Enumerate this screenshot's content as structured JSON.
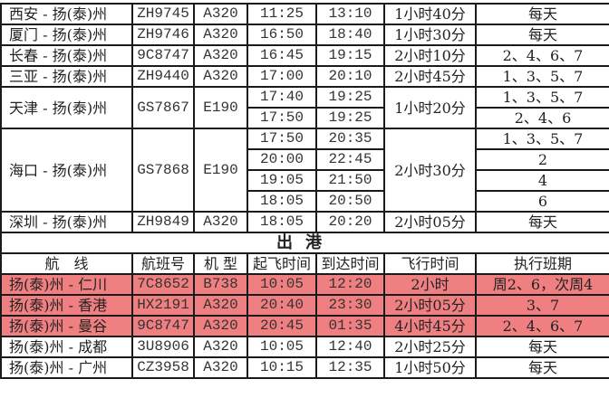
{
  "highlight_color": "#ef7f80",
  "arrivals": [
    {
      "route": "西安 - 扬(泰)州",
      "flight": "ZH9745",
      "aircraft": "A320",
      "duration": "1小时40分",
      "legs": [
        {
          "dep": "11:25",
          "arr": "13:10",
          "days": "每天"
        }
      ]
    },
    {
      "route": "厦门 - 扬(泰)州",
      "flight": "ZH9746",
      "aircraft": "A320",
      "duration": "1小时30分",
      "legs": [
        {
          "dep": "16:50",
          "arr": "18:40",
          "days": "每天"
        }
      ]
    },
    {
      "route": "长春 - 扬(泰)州",
      "flight": "9C8747",
      "aircraft": "A320",
      "duration": "2小时10分",
      "legs": [
        {
          "dep": "16:45",
          "arr": "19:15",
          "days": "2、4、6、7"
        }
      ]
    },
    {
      "route": "三亚 - 扬(泰)州",
      "flight": "ZH9440",
      "aircraft": "A320",
      "duration": "2小时45分",
      "legs": [
        {
          "dep": "17:00",
          "arr": "20:10",
          "days": "1、3、5、7"
        }
      ]
    },
    {
      "route": "天津 - 扬(泰)州",
      "flight": "GS7867",
      "aircraft": "E190",
      "duration": "1小时20分",
      "legs": [
        {
          "dep": "17:40",
          "arr": "19:25",
          "days": "1、3、5、7"
        },
        {
          "dep": "17:50",
          "arr": "19:25",
          "days": "2、4、6"
        }
      ]
    },
    {
      "route": "海口 - 扬(泰)州",
      "flight": "GS7868",
      "aircraft": "E190",
      "duration": "2小时30分",
      "legs": [
        {
          "dep": "17:50",
          "arr": "20:35",
          "days": "1、3、5、7"
        },
        {
          "dep": "20:00",
          "arr": "22:45",
          "days": "2"
        },
        {
          "dep": "19:05",
          "arr": "21:50",
          "days": "4"
        },
        {
          "dep": "18:05",
          "arr": "20:50",
          "days": "6"
        }
      ]
    },
    {
      "route": "深圳 - 扬(泰)州",
      "flight": "ZH9849",
      "aircraft": "A320",
      "duration": "2小时05分",
      "legs": [
        {
          "dep": "18:05",
          "arr": "20:20",
          "days": "每天"
        }
      ]
    }
  ],
  "departures_title": "出港",
  "headers": [
    "航　线",
    "航班号",
    "机 型",
    "起飞时间",
    "到达时间",
    "飞行时间",
    "执行班期"
  ],
  "departures": [
    {
      "route": "扬(泰)州 - 仁川",
      "flight": "7C8652",
      "aircraft": "B738",
      "dep": "10:05",
      "arr": "12:20",
      "duration": "2小时",
      "days": "周2、6，次周4",
      "highlighted": true
    },
    {
      "route": "扬(泰)州 - 香港",
      "flight": "HX2191",
      "aircraft": "A320",
      "dep": "20:40",
      "arr": "23:30",
      "duration": "2小时05分",
      "days": "3、7",
      "highlighted": true
    },
    {
      "route": "扬(泰)州 - 曼谷",
      "flight": "9C8747",
      "aircraft": "A320",
      "dep": "20:45",
      "arr": "01:35",
      "duration": "4小时45分",
      "days": "2、4、6、7",
      "highlighted": true
    },
    {
      "route": "扬(泰)州 - 成都",
      "flight": "3U8906",
      "aircraft": "A320",
      "dep": "10:05",
      "arr": "12:40",
      "duration": "2小时25分",
      "days": "每天",
      "highlighted": false
    },
    {
      "route": "扬(泰)州 - 广州",
      "flight": "CZ3958",
      "aircraft": "A320",
      "dep": "10:15",
      "arr": "12:35",
      "duration": "1小时50分",
      "days": "每天",
      "highlighted": false
    }
  ]
}
